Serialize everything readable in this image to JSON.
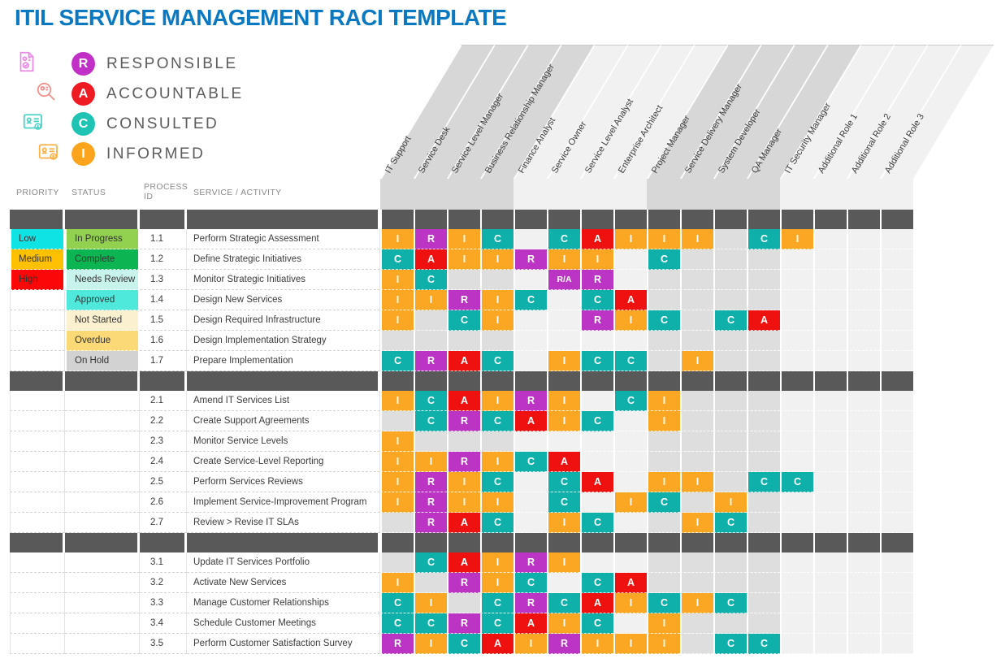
{
  "title": "ITIL SERVICE MANAGEMENT RACI TEMPLATE",
  "title_color": "#0b78c2",
  "legend": {
    "items": [
      {
        "key": "R",
        "label": "RESPONSIBLE",
        "color": "#c22fc7",
        "icon": "document-check-icon"
      },
      {
        "key": "A",
        "label": "ACCOUNTABLE",
        "color": "#ee1b23",
        "icon": "magnifier-person-icon"
      },
      {
        "key": "C",
        "label": "CONSULTED",
        "color": "#1fc3b4",
        "icon": "id-card-download-icon"
      },
      {
        "key": "I",
        "label": "INFORMED",
        "color": "#fca41e",
        "icon": "id-card-upload-icon"
      }
    ]
  },
  "table": {
    "left_headers": [
      "PRIORITY",
      "STATUS",
      "PROCESS ID",
      "SERVICE / ACTIVITY"
    ],
    "roles": [
      "IT Support",
      "Service Desk",
      "Service Level Manager",
      "Business Relationship Manager",
      "Finance Analyst",
      "Service Owner",
      "Service Level Analyst",
      "Enterprise Architect",
      "Project Manager",
      "Service Delivery Manager",
      "System Developer",
      "QA Manager",
      "IT Security Manager",
      "Additional Role 1",
      "Additional Role 2",
      "Additional Role 3"
    ],
    "raci_colors": {
      "R": "#bc34c4",
      "A": "#ef1010",
      "C": "#0fb0a9",
      "I": "#fba723",
      "R/A": "#bc34c4"
    },
    "priority_colors": {
      "Low": "#0fe3e3",
      "Medium": "#ffc000",
      "High": "#fb0707"
    },
    "status_colors": {
      "In Progress": "#92d050",
      "Complete": "#0cb551",
      "Needs Review": "#c8f2ec",
      "Approved": "#4ee9db",
      "Not Started": "#fbf0d0",
      "Overdue": "#fbd976",
      "On Hold": "#d2d2d2"
    },
    "sections": [
      {
        "rows": [
          {
            "priority": "Low",
            "status": "In Progress",
            "id": "1.1",
            "activity": "Perform Strategic Assessment",
            "raci": [
              "I",
              "R",
              "I",
              "C",
              "",
              "C",
              "A",
              "I",
              "I",
              "I",
              "",
              "C",
              "I",
              "",
              "",
              ""
            ]
          },
          {
            "priority": "Medium",
            "status": "Complete",
            "id": "1.2",
            "activity": "Define Strategic Initiatives",
            "raci": [
              "C",
              "A",
              "I",
              "I",
              "R",
              "I",
              "I",
              "",
              "C",
              "",
              "",
              "",
              "",
              "",
              "",
              ""
            ]
          },
          {
            "priority": "High",
            "status": "Needs Review",
            "id": "1.3",
            "activity": "Monitor Strategic Initiatives",
            "raci": [
              "I",
              "C",
              "",
              "",
              "",
              "R/A",
              "R",
              "",
              "",
              "",
              "",
              "",
              "",
              "",
              "",
              ""
            ]
          },
          {
            "priority": "",
            "status": "Approved",
            "id": "1.4",
            "activity": "Design New Services",
            "raci": [
              "I",
              "I",
              "R",
              "I",
              "C",
              "",
              "C",
              "A",
              "",
              "",
              "",
              "",
              "",
              "",
              "",
              ""
            ]
          },
          {
            "priority": "",
            "status": "Not Started",
            "id": "1.5",
            "activity": "Design Required Infrastructure",
            "raci": [
              "I",
              "",
              "C",
              "I",
              "",
              "",
              "R",
              "I",
              "C",
              "",
              "C",
              "A",
              "",
              "",
              "",
              ""
            ]
          },
          {
            "priority": "",
            "status": "Overdue",
            "id": "1.6",
            "activity": "Design Implementation Strategy",
            "raci": [
              "",
              "",
              "",
              "",
              "",
              "",
              "",
              "",
              "",
              "",
              "",
              "",
              "",
              "",
              "",
              ""
            ]
          },
          {
            "priority": "",
            "status": "On Hold",
            "id": "1.7",
            "activity": "Prepare Implementation",
            "raci": [
              "C",
              "R",
              "A",
              "C",
              "",
              "I",
              "C",
              "C",
              "",
              "I",
              "",
              "",
              "",
              "",
              "",
              ""
            ]
          }
        ]
      },
      {
        "rows": [
          {
            "priority": "",
            "status": "",
            "id": "2.1",
            "activity": "Amend IT Services List",
            "raci": [
              "I",
              "C",
              "A",
              "I",
              "R",
              "I",
              "",
              "C",
              "I",
              "",
              "",
              "",
              "",
              "",
              "",
              ""
            ]
          },
          {
            "priority": "",
            "status": "",
            "id": "2.2",
            "activity": "Create Support Agreements",
            "raci": [
              "",
              "C",
              "R",
              "C",
              "A",
              "I",
              "C",
              "",
              "I",
              "",
              "",
              "",
              "",
              "",
              "",
              ""
            ]
          },
          {
            "priority": "",
            "status": "",
            "id": "2.3",
            "activity": "Monitor Service Levels",
            "raci": [
              "I",
              "",
              "",
              "",
              "",
              "",
              "",
              "",
              "",
              "",
              "",
              "",
              "",
              "",
              "",
              ""
            ]
          },
          {
            "priority": "",
            "status": "",
            "id": "2.4",
            "activity": "Create Service-Level Reporting",
            "raci": [
              "I",
              "I",
              "R",
              "I",
              "C",
              "A",
              "",
              "",
              "",
              "",
              "",
              "",
              "",
              "",
              "",
              ""
            ]
          },
          {
            "priority": "",
            "status": "",
            "id": "2.5",
            "activity": "Perform Services Reviews",
            "raci": [
              "I",
              "R",
              "I",
              "C",
              "",
              "C",
              "A",
              "",
              "I",
              "I",
              "",
              "C",
              "C",
              "",
              "",
              ""
            ]
          },
          {
            "priority": "",
            "status": "",
            "id": "2.6",
            "activity": "Implement Service-Improvement Program",
            "raci": [
              "I",
              "R",
              "I",
              "I",
              "",
              "C",
              "",
              "I",
              "C",
              "",
              "I",
              "",
              "",
              "",
              "",
              ""
            ]
          },
          {
            "priority": "",
            "status": "",
            "id": "2.7",
            "activity": "Review > Revise IT SLAs",
            "raci": [
              "",
              "R",
              "A",
              "C",
              "",
              "I",
              "C",
              "",
              "",
              "I",
              "C",
              "",
              "",
              "",
              "",
              ""
            ]
          }
        ]
      },
      {
        "rows": [
          {
            "priority": "",
            "status": "",
            "id": "3.1",
            "activity": "Update IT Services Portfolio",
            "raci": [
              "",
              "C",
              "A",
              "I",
              "R",
              "I",
              "",
              "",
              "",
              "",
              "",
              "",
              "",
              "",
              "",
              ""
            ]
          },
          {
            "priority": "",
            "status": "",
            "id": "3.2",
            "activity": "Activate New Services",
            "raci": [
              "I",
              "",
              "R",
              "I",
              "C",
              "",
              "C",
              "A",
              "",
              "",
              "",
              "",
              "",
              "",
              "",
              ""
            ]
          },
          {
            "priority": "",
            "status": "",
            "id": "3.3",
            "activity": "Manage Customer Relationships",
            "raci": [
              "C",
              "I",
              "",
              "C",
              "R",
              "C",
              "A",
              "I",
              "C",
              "I",
              "C",
              "",
              "",
              "",
              "",
              ""
            ]
          },
          {
            "priority": "",
            "status": "",
            "id": "3.4",
            "activity": "Schedule Customer Meetings",
            "raci": [
              "C",
              "C",
              "R",
              "C",
              "A",
              "I",
              "C",
              "",
              "I",
              "",
              "",
              "",
              "",
              "",
              "",
              ""
            ]
          },
          {
            "priority": "",
            "status": "",
            "id": "3.5",
            "activity": "Perform Customer Satisfaction Survey",
            "raci": [
              "R",
              "I",
              "C",
              "A",
              "I",
              "R",
              "I",
              "I",
              "I",
              "",
              "C",
              "C",
              "",
              "",
              "",
              ""
            ]
          }
        ]
      }
    ]
  }
}
